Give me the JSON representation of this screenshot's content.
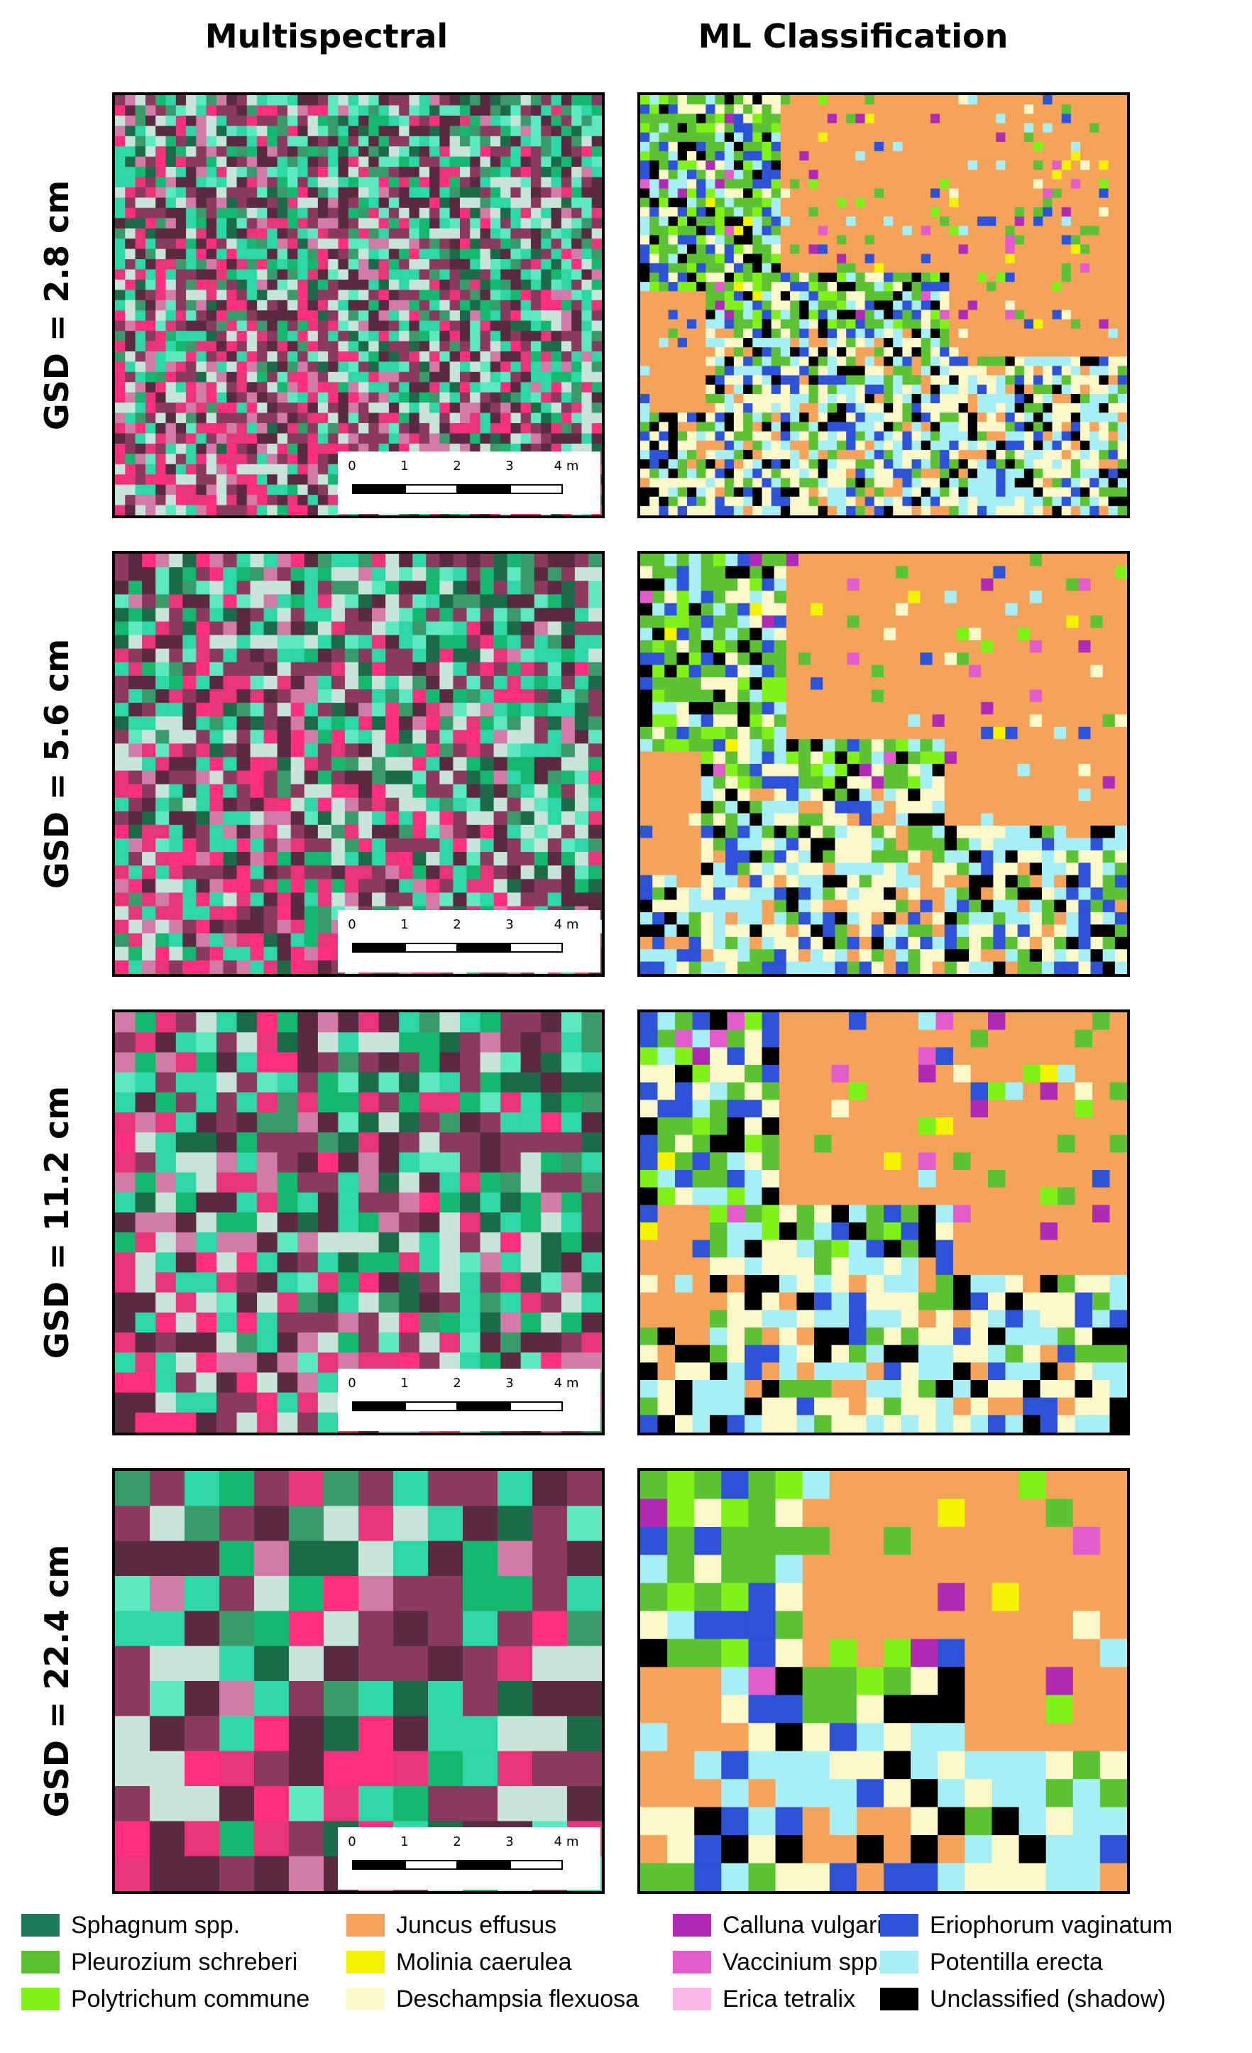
{
  "columns": [
    "Multispectral",
    "ML Classification"
  ],
  "rows": [
    {
      "label": "GSD = 2.8 cm"
    },
    {
      "label": "GSD = 5.6 cm"
    },
    {
      "label": "GSD = 11.2 cm"
    },
    {
      "label": "GSD = 22.4 cm"
    }
  ],
  "scale_bar": {
    "ticks": [
      "0",
      "1",
      "2",
      "3",
      "4 m"
    ]
  },
  "legend": [
    {
      "label": "Sphagnum spp.",
      "color": "#1d7a5c"
    },
    {
      "label": "Pleurozium schreberi",
      "color": "#5cc234"
    },
    {
      "label": "Polytrichum commune",
      "color": "#7ff21a"
    },
    {
      "label": "Juncus effusus",
      "color": "#f5a25b"
    },
    {
      "label": "Molinia caerulea",
      "color": "#f5f200"
    },
    {
      "label": "Deschampsia flexuosa",
      "color": "#fdf8c9"
    },
    {
      "label": "Calluna vulgaris",
      "color": "#b02ab3"
    },
    {
      "label": "Vaccinium spp.",
      "color": "#e35ccc"
    },
    {
      "label": "Erica tetralix",
      "color": "#f5b8e8"
    },
    {
      "label": "Eriophorum vaginatum",
      "color": "#2f53d6"
    },
    {
      "label": "Potentilla erecta",
      "color": "#a8eef5"
    },
    {
      "label": "Unclassified (shadow)",
      "color": "#000000"
    }
  ],
  "multispectral_palette": [
    "#2fd6a6",
    "#5de8c0",
    "#e8357a",
    "#ff2f7d",
    "#8a3a5e",
    "#5a2a40",
    "#3a9a6a",
    "#c8e4d8",
    "#d27aa8",
    "#16b870",
    "#1c6a48"
  ]
}
